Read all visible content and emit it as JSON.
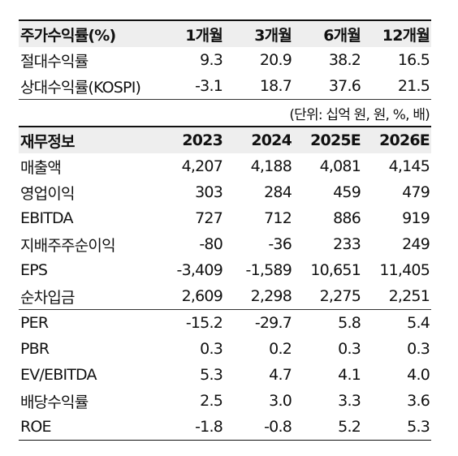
{
  "returns": {
    "header": [
      "주가수익률(%)",
      "1개월",
      "3개월",
      "6개월",
      "12개월"
    ],
    "rows": [
      [
        "절대수익률",
        "9.3",
        "20.9",
        "38.2",
        "16.5"
      ],
      [
        "상대수익률(KOSPI)",
        "-3.1",
        "18.7",
        "37.6",
        "21.5"
      ]
    ]
  },
  "unit_note": "(단위: 십억 원, 원, %, 배)",
  "financials": {
    "header": [
      "재무정보",
      "2023",
      "2024",
      "2025E",
      "2026E"
    ],
    "rows": [
      [
        "매출액",
        "4,207",
        "4,188",
        "4,081",
        "4,145"
      ],
      [
        "영업이익",
        "303",
        "284",
        "459",
        "479"
      ],
      [
        "EBITDA",
        "727",
        "712",
        "886",
        "919"
      ],
      [
        "지배주주순이익",
        "-80",
        "-36",
        "233",
        "249"
      ],
      [
        "EPS",
        "-3,409",
        "-1,589",
        "10,651",
        "11,405"
      ],
      [
        "순차입금",
        "2,609",
        "2,298",
        "2,275",
        "2,251"
      ]
    ],
    "ratio_rows": [
      [
        "PER",
        "-15.2",
        "-29.7",
        "5.8",
        "5.4"
      ],
      [
        "PBR",
        "0.3",
        "0.2",
        "0.3",
        "0.3"
      ],
      [
        "EV/EBITDA",
        "5.3",
        "4.7",
        "4.1",
        "4.0"
      ],
      [
        "배당수익률",
        "2.5",
        "3.0",
        "3.3",
        "3.6"
      ],
      [
        "ROE",
        "-1.8",
        "-0.8",
        "5.2",
        "5.3"
      ]
    ]
  }
}
